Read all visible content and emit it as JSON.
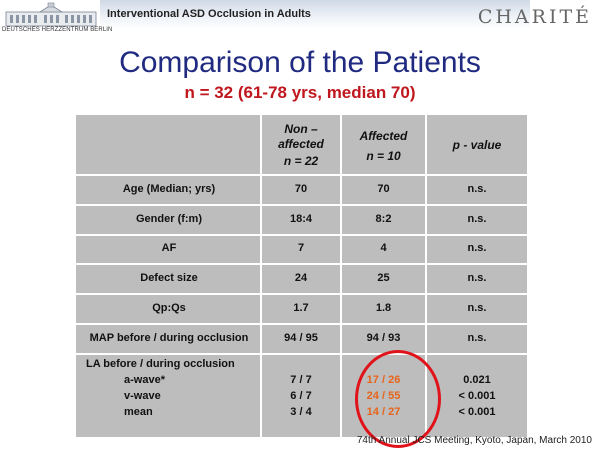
{
  "header": {
    "title": "Interventional ASD Occlusion in Adults",
    "logo_caption": "DEUTSCHES HERZZENTRUM BERLIN",
    "brand": "CHARITÉ"
  },
  "slide": {
    "title": "Comparison of the Patients",
    "subtitle": "n = 32 (61-78 yrs, median 70)"
  },
  "table": {
    "columns": {
      "non_affected_line1": "Non –",
      "non_affected_line2": "affected",
      "non_affected_n": "n = 22",
      "affected": "Affected",
      "affected_n": "n = 10",
      "p_value": "p - value"
    },
    "rows": [
      {
        "label": "Age (Median; yrs)",
        "non_affected": "70",
        "affected": "70",
        "p": "n.s."
      },
      {
        "label": "Gender (f:m)",
        "non_affected": "18:4",
        "affected": "8:2",
        "p": "n.s."
      },
      {
        "label": "AF",
        "non_affected": "7",
        "affected": "4",
        "p": "n.s."
      },
      {
        "label": "Defect size",
        "non_affected": "24",
        "affected": "25",
        "p": "n.s."
      },
      {
        "label": "Qp:Qs",
        "non_affected": "1.7",
        "affected": "1.8",
        "p": "n.s."
      },
      {
        "label": "MAP before / during occlusion",
        "non_affected": "94 / 95",
        "affected": "94 / 93",
        "p": "n.s."
      }
    ],
    "la": {
      "label": "LA before / during occlusion",
      "sub": [
        {
          "label": "a-wave*",
          "non_affected": "7 / 7",
          "affected": "17 / 26",
          "p": "0.021"
        },
        {
          "label": "v-wave",
          "non_affected": "6 / 7",
          "affected": "24 / 55",
          "p": "< 0.001"
        },
        {
          "label": "mean",
          "non_affected": "3 / 4",
          "affected": "14 / 27",
          "p": "< 0.001"
        }
      ]
    }
  },
  "highlight_color": "#e8641b",
  "circle_color": "#e0131a",
  "footer": "74th Annual JCS Meeting, Kyoto, Japan, March 2010"
}
